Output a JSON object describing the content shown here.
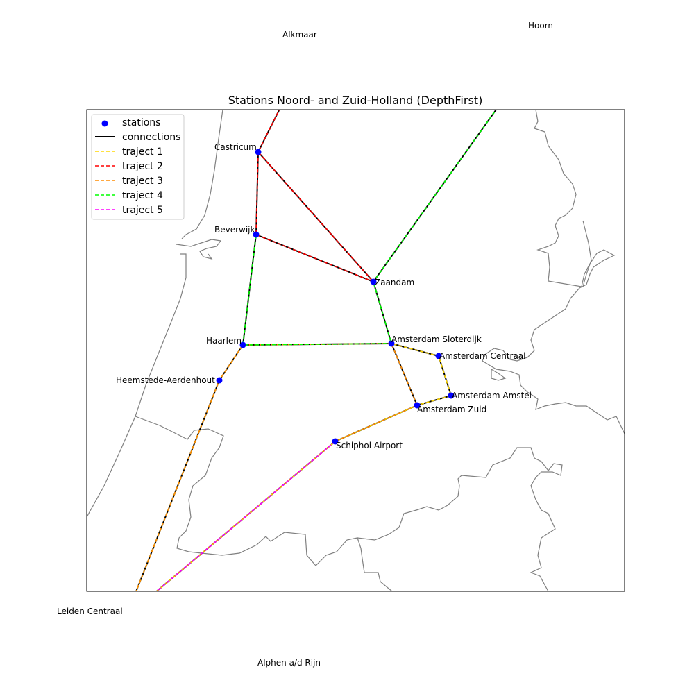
{
  "title": "Stations Noord- and Zuid-Holland (DepthFirst)",
  "legend": [
    {
      "id": "stations",
      "label": "stations",
      "kind": "marker",
      "color": "#0000ff"
    },
    {
      "id": "connections",
      "label": "connections",
      "kind": "solid",
      "color": "#000000"
    },
    {
      "id": "traject1",
      "label": "traject 1",
      "kind": "dashed",
      "color": "#ffd700"
    },
    {
      "id": "traject2",
      "label": "traject 2",
      "kind": "dashed",
      "color": "#ff0000"
    },
    {
      "id": "traject3",
      "label": "traject 3",
      "kind": "dashed",
      "color": "#ff8c00"
    },
    {
      "id": "traject4",
      "label": "traject 4",
      "kind": "dashed",
      "color": "#00ff00"
    },
    {
      "id": "traject5",
      "label": "traject 5",
      "kind": "dashed",
      "color": "#ff00ff"
    }
  ],
  "stations": [
    {
      "id": "castricum",
      "name": "Castricum"
    },
    {
      "id": "beverwijk",
      "name": "Beverwijk"
    },
    {
      "id": "zaandam",
      "name": "Zaandam"
    },
    {
      "id": "haarlem",
      "name": "Haarlem"
    },
    {
      "id": "heemstede",
      "name": "Heemstede-Aerdenhout"
    },
    {
      "id": "sloterdijk",
      "name": "Amsterdam Sloterdijk"
    },
    {
      "id": "centraal",
      "name": "Amsterdam Centraal"
    },
    {
      "id": "amstel",
      "name": "Amsterdam Amstel"
    },
    {
      "id": "zuid",
      "name": "Amsterdam Zuid"
    },
    {
      "id": "schiphol",
      "name": "Schiphol Airport"
    }
  ],
  "outside_stations": [
    {
      "id": "alkmaar",
      "name": "Alkmaar"
    },
    {
      "id": "hoorn",
      "name": "Hoorn"
    },
    {
      "id": "leiden",
      "name": "Leiden Centraal"
    },
    {
      "id": "alphen",
      "name": "Alphen a/d Rijn"
    }
  ],
  "trajecten": [
    {
      "name": "traject 1",
      "color": "#ffd700",
      "route": [
        "leiden",
        "heemstede",
        "haarlem",
        "sloterdijk",
        "centraal",
        "amstel",
        "zuid",
        "schiphol",
        "alphen"
      ]
    },
    {
      "name": "traject 2",
      "color": "#ff0000",
      "route": [
        "alkmaar",
        "castricum",
        "beverwijk",
        "zaandam",
        "castricum",
        "zaandam"
      ]
    },
    {
      "name": "traject 3",
      "color": "#ff8c00",
      "route": [
        "leiden",
        "heemstede",
        "haarlem",
        "sloterdijk",
        "zuid",
        "schiphol",
        "alphen"
      ]
    },
    {
      "name": "traject 4",
      "color": "#00ff00",
      "route": [
        "hoorn",
        "zaandam",
        "sloterdijk",
        "haarlem",
        "beverwijk"
      ]
    },
    {
      "name": "traject 5",
      "color": "#ff00ff",
      "route": [
        "schiphol",
        "alphen"
      ]
    }
  ]
}
